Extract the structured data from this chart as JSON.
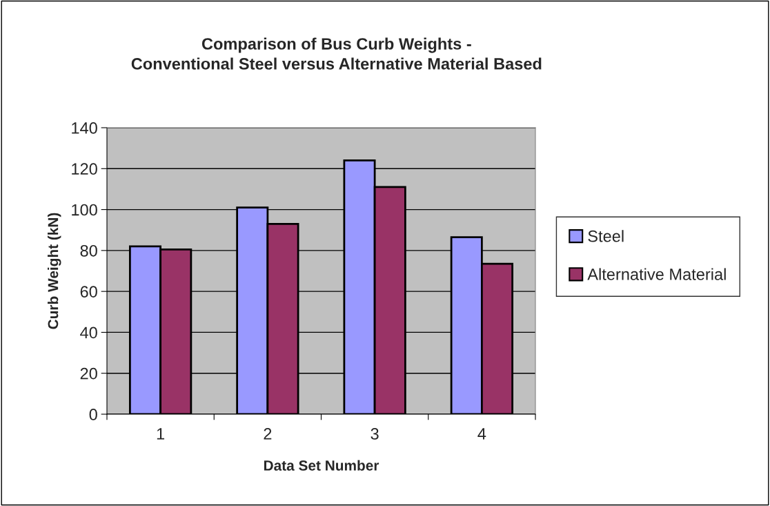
{
  "chart_data": {
    "type": "bar",
    "title": "Comparison of Bus Curb Weights -\nConventional Steel versus Alternative Material Based",
    "xlabel": "Data Set Number",
    "ylabel": "Curb Weight (kN)",
    "categories": [
      "1",
      "2",
      "3",
      "4"
    ],
    "series": [
      {
        "name": "Steel",
        "color": "#9999ff",
        "values": [
          82,
          101,
          124,
          86.5
        ]
      },
      {
        "name": "Alternative Material",
        "color": "#993366",
        "values": [
          80.5,
          93,
          111,
          73.5
        ]
      }
    ],
    "ylim": [
      0,
      140
    ],
    "yticks": [
      0,
      20,
      40,
      60,
      80,
      100,
      120,
      140
    ],
    "grid": "y",
    "legend": "right"
  }
}
